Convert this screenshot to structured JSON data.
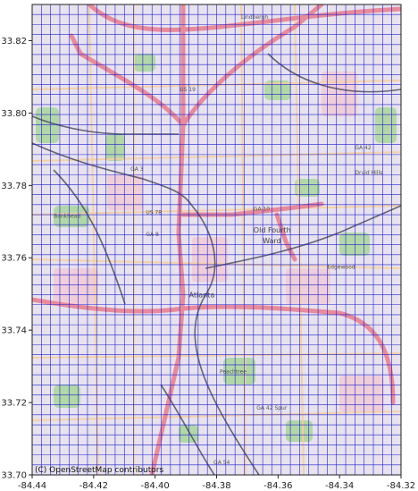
{
  "chart_data": {
    "type": "map",
    "xlim": [
      -84.44,
      -84.32
    ],
    "ylim": [
      33.7,
      33.83
    ],
    "x_ticks": [
      "-84.44",
      "-84.42",
      "-84.40",
      "-84.38",
      "-84.36",
      "-84.34",
      "-84.32"
    ],
    "x_tick_values": [
      -84.44,
      -84.42,
      -84.4,
      -84.38,
      -84.36,
      -84.34,
      -84.32
    ],
    "y_ticks": [
      "33.70",
      "33.72",
      "33.74",
      "33.76",
      "33.78",
      "33.80",
      "33.82"
    ],
    "y_tick_values": [
      33.7,
      33.72,
      33.74,
      33.76,
      33.78,
      33.8,
      33.82
    ],
    "grid_cols": 40,
    "grid_rows": 47,
    "grid_color": "#2020d0",
    "attribution": "(C) OpenStreetMap contributors",
    "place_labels": [
      {
        "text": "Atlanta",
        "lon": -84.389,
        "lat": 33.749,
        "big": true
      },
      {
        "text": "Old Fourth",
        "lon": -84.368,
        "lat": 33.767,
        "big": true
      },
      {
        "text": "Ward",
        "lon": -84.365,
        "lat": 33.764,
        "big": true
      },
      {
        "text": "Druid Hills",
        "lon": -84.335,
        "lat": 33.783,
        "big": false
      },
      {
        "text": "Bankhead",
        "lon": -84.433,
        "lat": 33.771,
        "big": false
      },
      {
        "text": "Peachtree",
        "lon": -84.379,
        "lat": 33.728,
        "big": false
      },
      {
        "text": "Edgewood",
        "lon": -84.344,
        "lat": 33.757,
        "big": false
      },
      {
        "text": "Lindbergh",
        "lon": -84.372,
        "lat": 33.826,
        "big": false
      },
      {
        "text": "GA 10",
        "lon": -84.368,
        "lat": 33.773,
        "big": false
      },
      {
        "text": "GA 8",
        "lon": -84.403,
        "lat": 33.766,
        "big": false
      },
      {
        "text": "GA 42",
        "lon": -84.335,
        "lat": 33.79,
        "big": false
      },
      {
        "text": "US 19",
        "lon": -84.392,
        "lat": 33.806,
        "big": false
      },
      {
        "text": "GA 3",
        "lon": -84.408,
        "lat": 33.784,
        "big": false
      },
      {
        "text": "US 78",
        "lon": -84.403,
        "lat": 33.772,
        "big": false
      },
      {
        "text": "GA 42 Spur",
        "lon": -84.367,
        "lat": 33.718,
        "big": false
      },
      {
        "text": "GA 54",
        "lon": -84.381,
        "lat": 33.703,
        "big": false
      }
    ],
    "colors": {
      "map_base": "#e7e2ee",
      "interstate": "#e98a9b",
      "primary_road": "#f6cfa0",
      "rail": "#505060",
      "park": "#a8d69a"
    }
  }
}
